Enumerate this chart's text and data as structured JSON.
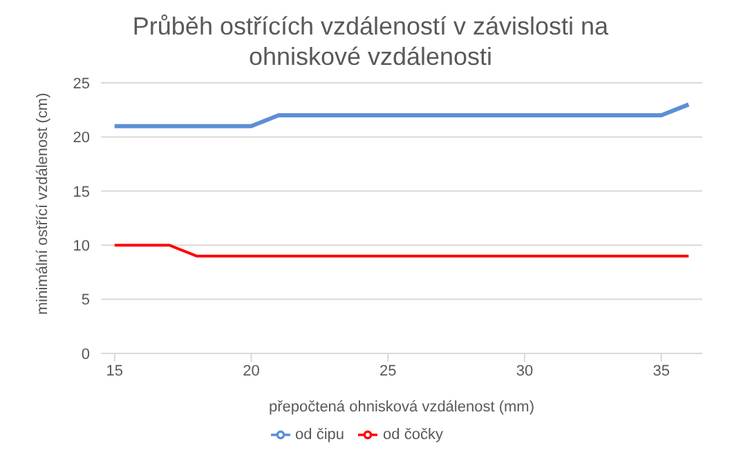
{
  "chart_data": {
    "type": "line",
    "title": "Průběh ostřících vzdáleností v závislosti na ohniskové vzdálenosti",
    "xlabel": "přepočtená ohnisková vzdálenost (mm)",
    "ylabel": "minimální ostřící vzdálenost (cm)",
    "series": [
      {
        "name": "od čočky",
        "color": "#ff0000",
        "x": [
          15,
          17,
          18,
          36
        ],
        "values": [
          10,
          10,
          9,
          9
        ]
      },
      {
        "name": "od čipu",
        "color": "#5b8fd6",
        "x": [
          15,
          20,
          21,
          35,
          36
        ],
        "values": [
          21,
          21,
          22,
          22,
          23
        ]
      }
    ],
    "xlim": [
      14.5,
      36.5
    ],
    "xticks": [
      15,
      20,
      25,
      30,
      35
    ],
    "ylim": [
      0,
      25
    ],
    "yticks": [
      0,
      5,
      10,
      15,
      20,
      25
    ],
    "grid": "y",
    "legend": "bottom",
    "marker": "none",
    "line_style": "solid"
  }
}
